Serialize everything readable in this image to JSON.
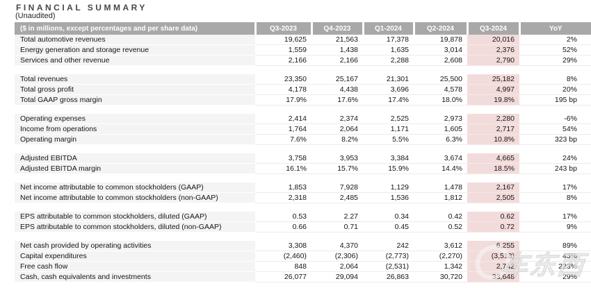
{
  "title": "FINANCIAL SUMMARY",
  "subtitle": "(Unaudited)",
  "watermark": "车东西",
  "colors": {
    "header_bg": "#a8a8a8",
    "label_cell_bg": "#f4f4f4",
    "highlight_pink": "#f2dcdb"
  },
  "table": {
    "header": [
      "($ in millions, except percentages and per share data)",
      "Q3-2023",
      "Q4-2023",
      "Q1-2024",
      "Q2-2024",
      "Q3-2024",
      "YoY"
    ],
    "highlight_column": "Q3-2024",
    "sections": [
      {
        "name": "revenues",
        "rows": [
          {
            "label": "Total automotive revenues",
            "values": [
              "19,625",
              "21,563",
              "17,378",
              "19,878",
              "20,016",
              "2%"
            ]
          },
          {
            "label": "Energy generation and storage revenue",
            "values": [
              "1,559",
              "1,438",
              "1,635",
              "3,014",
              "2,376",
              "52%"
            ]
          },
          {
            "label": "Services and other revenue",
            "values": [
              "2,166",
              "2,166",
              "2,288",
              "2,608",
              "2,790",
              "29%"
            ]
          }
        ]
      },
      {
        "name": "totals",
        "rows": [
          {
            "label": "Total revenues",
            "values": [
              "23,350",
              "25,167",
              "21,301",
              "25,500",
              "25,182",
              "8%"
            ]
          },
          {
            "label": "Total gross profit",
            "values": [
              "4,178",
              "4,438",
              "3,696",
              "4,578",
              "4,997",
              "20%"
            ]
          },
          {
            "label": "Total GAAP gross margin",
            "values": [
              "17.9%",
              "17.6%",
              "17.4%",
              "18.0%",
              "19.8%",
              "195 bp"
            ]
          }
        ]
      },
      {
        "name": "operations",
        "rows": [
          {
            "label": "Operating expenses",
            "values": [
              "2,414",
              "2,374",
              "2,525",
              "2,973",
              "2,280",
              "-6%"
            ]
          },
          {
            "label": "Income from operations",
            "values": [
              "1,764",
              "2,064",
              "1,171",
              "1,605",
              "2,717",
              "54%"
            ]
          },
          {
            "label": "Operating margin",
            "values": [
              "7.6%",
              "8.2%",
              "5.5%",
              "6.3%",
              "10.8%",
              "323 bp"
            ]
          }
        ]
      },
      {
        "name": "ebitda",
        "rows": [
          {
            "label": "Adjusted EBITDA",
            "values": [
              "3,758",
              "3,953",
              "3,384",
              "3,674",
              "4,665",
              "24%"
            ]
          },
          {
            "label": "Adjusted EBITDA margin",
            "values": [
              "16.1%",
              "15.7%",
              "15.9%",
              "14.4%",
              "18.5%",
              "243 bp"
            ]
          }
        ]
      },
      {
        "name": "net-income",
        "rows": [
          {
            "label": "Net income attributable to common stockholders (GAAP)",
            "values": [
              "1,853",
              "7,928",
              "1,129",
              "1,478",
              "2,167",
              "17%"
            ]
          },
          {
            "label": "Net income attributable to common stockholders (non-GAAP)",
            "values": [
              "2,318",
              "2,485",
              "1,536",
              "1,812",
              "2,505",
              "8%"
            ]
          }
        ]
      },
      {
        "name": "eps",
        "rows": [
          {
            "label": "EPS attributable to common stockholders, diluted (GAAP)",
            "values": [
              "0.53",
              "2.27",
              "0.34",
              "0.42",
              "0.62",
              "17%"
            ]
          },
          {
            "label": "EPS attributable to common stockholders, diluted (non-GAAP)",
            "values": [
              "0.66",
              "0.71",
              "0.45",
              "0.52",
              "0.72",
              "9%"
            ]
          }
        ]
      },
      {
        "name": "cash-flow",
        "rows": [
          {
            "label": "Net cash provided by operating activities",
            "values": [
              "3,308",
              "4,370",
              "242",
              "3,612",
              "6,255",
              "89%"
            ]
          },
          {
            "label": "Capital expenditures",
            "values": [
              "(2,460)",
              "(2,306)",
              "(2,773)",
              "(2,270)",
              "(3,513)",
              "43%"
            ]
          },
          {
            "label": "Free cash flow",
            "values": [
              "848",
              "2,064",
              "(2,531)",
              "1,342",
              "2,742",
              "223%"
            ]
          },
          {
            "label": "Cash, cash equivalents and investments",
            "values": [
              "26,077",
              "29,094",
              "26,863",
              "30,720",
              "33,648",
              "29%"
            ]
          }
        ]
      }
    ]
  }
}
